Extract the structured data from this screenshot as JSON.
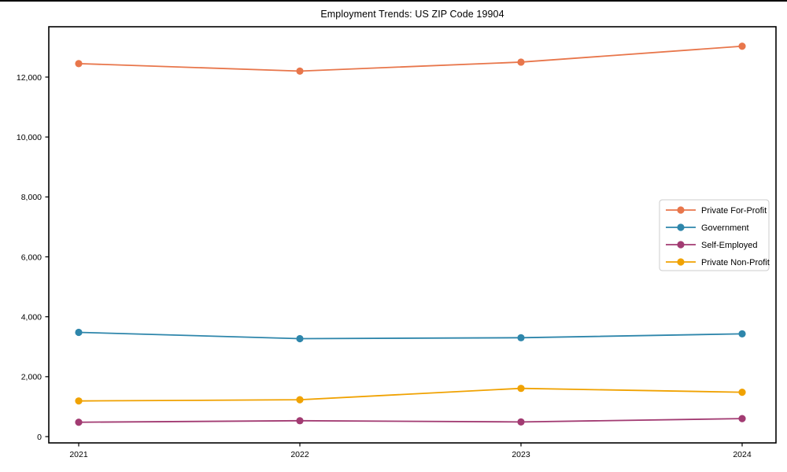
{
  "chart_data": {
    "type": "line",
    "title": "Employment Trends: US ZIP Code 19904",
    "categories": [
      "2021",
      "2022",
      "2023",
      "2024"
    ],
    "series": [
      {
        "name": "Private For-Profit",
        "color": "#E8764B",
        "values": [
          12450,
          12200,
          12500,
          13030
        ]
      },
      {
        "name": "Government",
        "color": "#2E86AB",
        "values": [
          3480,
          3270,
          3300,
          3430
        ]
      },
      {
        "name": "Self-Employed",
        "color": "#A23B72",
        "values": [
          480,
          530,
          490,
          600
        ]
      },
      {
        "name": "Private Non-Profit",
        "color": "#F0A202",
        "values": [
          1190,
          1230,
          1610,
          1480
        ]
      }
    ],
    "xlabel": "",
    "ylabel": "",
    "yticks": [
      0,
      2000,
      4000,
      6000,
      8000,
      10000,
      12000
    ],
    "ytick_labels": [
      "0",
      "2,000",
      "4,000",
      "6,000",
      "8,000",
      "10,000",
      "12,000"
    ],
    "ylim": [
      -210,
      13680
    ],
    "grid": false,
    "legend_position": "right-center",
    "legend_border_color": "#cccccc",
    "axis_color": "#000000",
    "background_color": "#ffffff"
  }
}
